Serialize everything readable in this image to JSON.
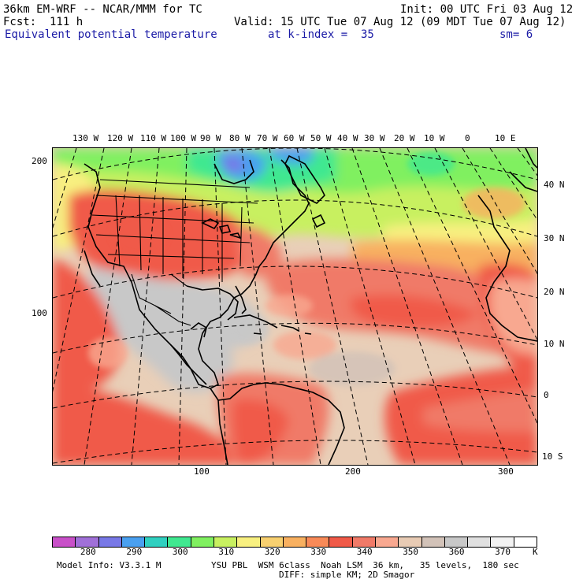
{
  "header": {
    "model_line": "36km EM-WRF -- NCAR/MMM for TC",
    "init_line": "Init: 00 UTC Fri 03 Aug 12",
    "fcst_line": "Fcst:  111 h",
    "valid_line": "Valid: 15 UTC Tue 07 Aug 12 (09 MDT Tue 07 Aug 12)",
    "field_name": "Equivalent potential temperature",
    "level": "at k-index =  35",
    "smoothing": "sm= 6"
  },
  "longitude_labels": [
    "130 W",
    "120 W",
    "110 W",
    "100 W",
    "90 W",
    "80 W",
    "70 W",
    "60 W",
    "50 W",
    "40 W",
    "30 W",
    "20 W",
    "10 W",
    "0",
    "10 E"
  ],
  "latitude_labels": [
    "40 N",
    "30 N",
    "20 N",
    "10 N",
    "0",
    "10 S"
  ],
  "grid_x_labels": [
    "100",
    "200",
    "300"
  ],
  "grid_y_labels": [
    "200",
    "100"
  ],
  "colorbar": {
    "labels": [
      "280",
      "290",
      "300",
      "310",
      "320",
      "330",
      "340",
      "350",
      "360",
      "370"
    ],
    "unit": "K",
    "colors": [
      "#c850c8",
      "#a070d8",
      "#7878e6",
      "#4aa0f0",
      "#30d0c0",
      "#40e890",
      "#80f060",
      "#c8f060",
      "#f8f080",
      "#f8d070",
      "#f8b060",
      "#f88a58",
      "#f05a48",
      "#f07a68",
      "#f8a890",
      "#e8cbb4",
      "#d2c2b8",
      "#c8c8c8",
      "#e0e0e0",
      "#f2f2f2",
      "#ffffff"
    ]
  },
  "footer": {
    "model_info": "Model Info: V3.3.1 M",
    "physics": "YSU PBL  WSM 6class  Noah LSM  36 km,   35 levels,  180 sec",
    "diffusion": "DIFF: simple KM; 2D Smagor"
  }
}
